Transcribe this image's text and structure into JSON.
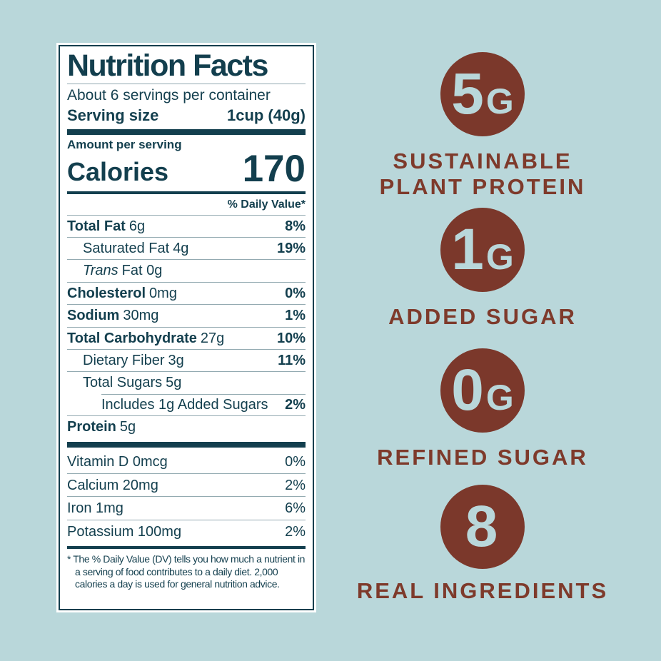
{
  "colors": {
    "background": "#b9d7da",
    "panel": "#ffffff",
    "teal_text": "#133f4e",
    "badge_brown": "#7b382b",
    "badge_text_brown": "#7e3a2b",
    "divider": "#93aab1"
  },
  "nutrition_label": {
    "title": "Nutrition Facts",
    "servings_per_container": "About 6 servings per container",
    "serving_size_label": "Serving size",
    "serving_size_value": "1cup (40g)",
    "amount_per_serving": "Amount per serving",
    "calories_label": "Calories",
    "calories_value": "170",
    "daily_value_header": "% Daily Value*",
    "rows": [
      {
        "name": "Total Fat",
        "amount": "6g",
        "dv": "8%"
      },
      {
        "name": "Saturated Fat",
        "amount": "4g",
        "dv": "19%"
      },
      {
        "name": "Trans",
        "amount": "Fat 0g",
        "dv": ""
      },
      {
        "name": "Cholesterol",
        "amount": "0mg",
        "dv": "0%"
      },
      {
        "name": "Sodium",
        "amount": "30mg",
        "dv": "1%"
      },
      {
        "name": "Total Carbohydrate",
        "amount": "27g",
        "dv": "10%"
      },
      {
        "name": "Dietary Fiber",
        "amount": "3g",
        "dv": "11%"
      },
      {
        "name": "Total Sugars",
        "amount": "5g",
        "dv": ""
      },
      {
        "name": "Includes 1g Added Sugars",
        "amount": "",
        "dv": "2%"
      },
      {
        "name": "Protein",
        "amount": "5g",
        "dv": ""
      }
    ],
    "micronutrients": [
      {
        "name": "Vitamin D 0mcg",
        "dv": "0%"
      },
      {
        "name": "Calcium 20mg",
        "dv": "2%"
      },
      {
        "name": "Iron 1mg",
        "dv": "6%"
      },
      {
        "name": "Potassium 100mg",
        "dv": "2%"
      }
    ],
    "footnote": "* The % Daily Value (DV) tells you how much a nutrient in a serving of food contributes to a daily diet. 2,000 calories a day is used for general nutrition advice."
  },
  "badges": [
    {
      "value": "5",
      "unit": "G",
      "lines": [
        "SUSTAINABLE",
        "PLANT PROTEIN"
      ]
    },
    {
      "value": "1",
      "unit": "G",
      "lines": [
        "ADDED SUGAR"
      ]
    },
    {
      "value": "0",
      "unit": "G",
      "lines": [
        "REFINED SUGAR"
      ]
    },
    {
      "value": "8",
      "unit": "",
      "lines": [
        "REAL INGREDIENTS"
      ]
    }
  ]
}
